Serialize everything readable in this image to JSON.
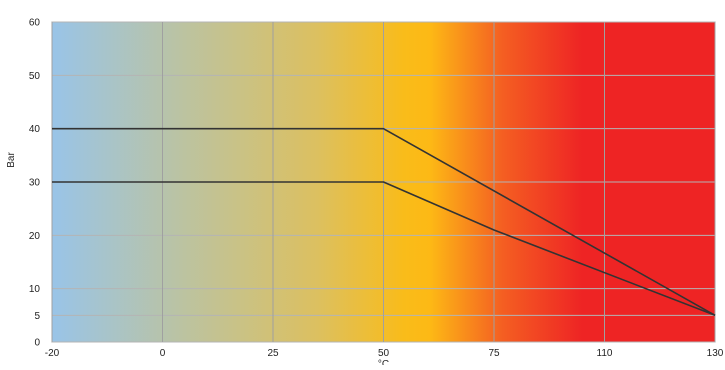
{
  "chart_data": {
    "type": "line",
    "xlabel": "°C",
    "ylabel": "Bar",
    "xlim": [
      -20,
      130
    ],
    "ylim": [
      0,
      60
    ],
    "x_ticks": [
      -20,
      0,
      25,
      50,
      75,
      110,
      130
    ],
    "y_ticks": [
      0,
      5,
      10,
      20,
      30,
      40,
      50,
      60
    ],
    "grid": true,
    "background_gradient": [
      {
        "stop": 0.0,
        "color": "#99c4e8"
      },
      {
        "stop": 0.2,
        "color": "#bcc3a0"
      },
      {
        "stop": 0.4,
        "color": "#dcc060"
      },
      {
        "stop": 0.53,
        "color": "#f9bc1a"
      },
      {
        "stop": 0.57,
        "color": "#fdb915"
      },
      {
        "stop": 0.68,
        "color": "#f45e22"
      },
      {
        "stop": 0.8,
        "color": "#ee2424"
      },
      {
        "stop": 1.0,
        "color": "#ee2424"
      }
    ],
    "line_color": "#333333",
    "series": [
      {
        "x": [
          -20,
          50,
          130
        ],
        "values": [
          40,
          40,
          5
        ]
      },
      {
        "x": [
          -20,
          50,
          75,
          130
        ],
        "values": [
          30,
          30,
          21,
          5
        ]
      }
    ]
  }
}
